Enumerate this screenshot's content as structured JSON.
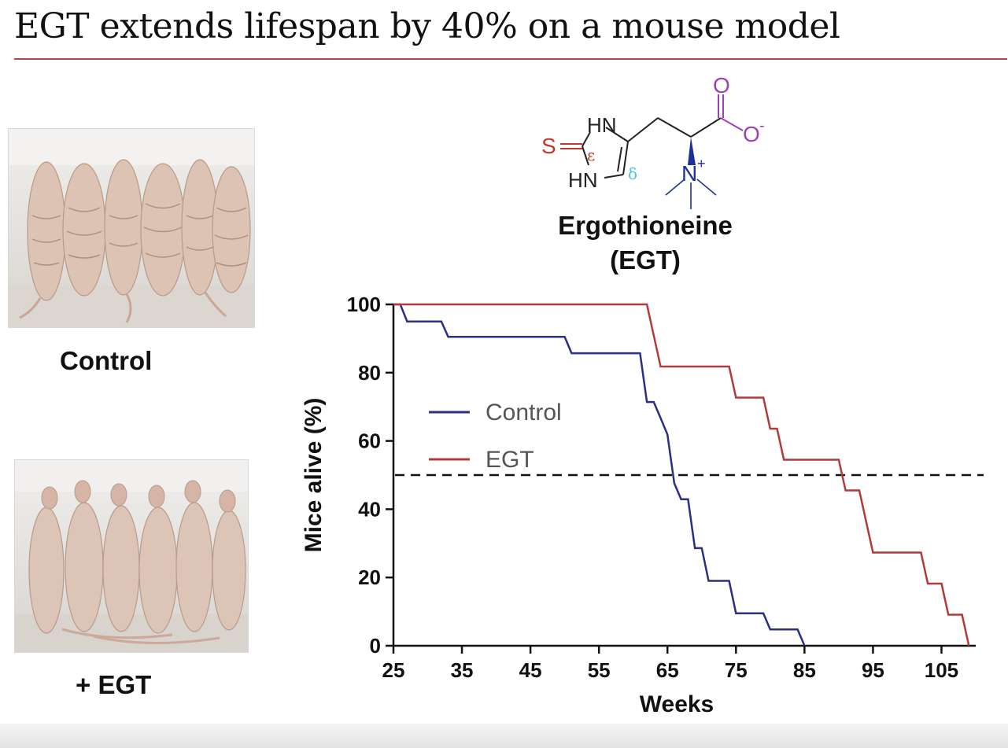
{
  "slide": {
    "title": "EGT extends lifespan by 40% on a mouse model"
  },
  "photos": {
    "control_caption": "Control",
    "egt_caption": "+ EGT"
  },
  "molecule": {
    "name": "Ergothioneine",
    "abbrev": "(EGT)",
    "atoms": {
      "hn_top": "HN",
      "hn_bottom": "HN",
      "sulfur": "S",
      "epsilon": "ε",
      "delta": "δ",
      "nitrogen": "N",
      "plus": "+",
      "oxygen_top": "O",
      "oxygen_right": "O",
      "minus": "-"
    },
    "colors": {
      "sulfur": "#c0392b",
      "carboxylate": "#a040b8",
      "ammonium": "#1f2f9a",
      "delta": "#49c6d6"
    }
  },
  "chart_data": {
    "type": "line",
    "step": true,
    "xlabel": "Weeks",
    "ylabel": "Mice alive (%)",
    "xlim": [
      25,
      110
    ],
    "ylim": [
      0,
      100
    ],
    "xticks": [
      25,
      35,
      45,
      55,
      65,
      75,
      85,
      95,
      105
    ],
    "yticks": [
      0,
      20,
      40,
      60,
      80,
      100
    ],
    "grid": false,
    "legend": "center-left",
    "reference_line": {
      "y": 50,
      "style": "dashed"
    },
    "series": [
      {
        "name": "Control",
        "color": "#2b2f86",
        "x": [
          25,
          26,
          27,
          32,
          33,
          50,
          51,
          61,
          62,
          63,
          64,
          65,
          66,
          67,
          68,
          69,
          70,
          71,
          74,
          75,
          79,
          80,
          84,
          85
        ],
        "y": [
          100,
          100,
          95,
          95,
          90.5,
          90.5,
          85.7,
          85.7,
          71.4,
          71.4,
          66.7,
          61.9,
          47.6,
          42.9,
          42.9,
          28.6,
          28.6,
          19,
          19,
          9.5,
          9.5,
          4.8,
          4.8,
          0
        ]
      },
      {
        "name": "EGT",
        "color": "#b33a3a",
        "x": [
          25,
          62,
          63,
          64,
          74,
          75,
          79,
          80,
          81,
          82,
          90,
          91,
          93,
          94,
          95,
          102,
          103,
          105,
          106,
          108,
          109
        ],
        "y": [
          100,
          100,
          90.9,
          81.8,
          81.8,
          72.7,
          72.7,
          63.6,
          63.6,
          54.5,
          54.5,
          45.5,
          45.5,
          36.4,
          27.3,
          27.3,
          18.2,
          18.2,
          9.1,
          9.1,
          0
        ]
      }
    ]
  }
}
